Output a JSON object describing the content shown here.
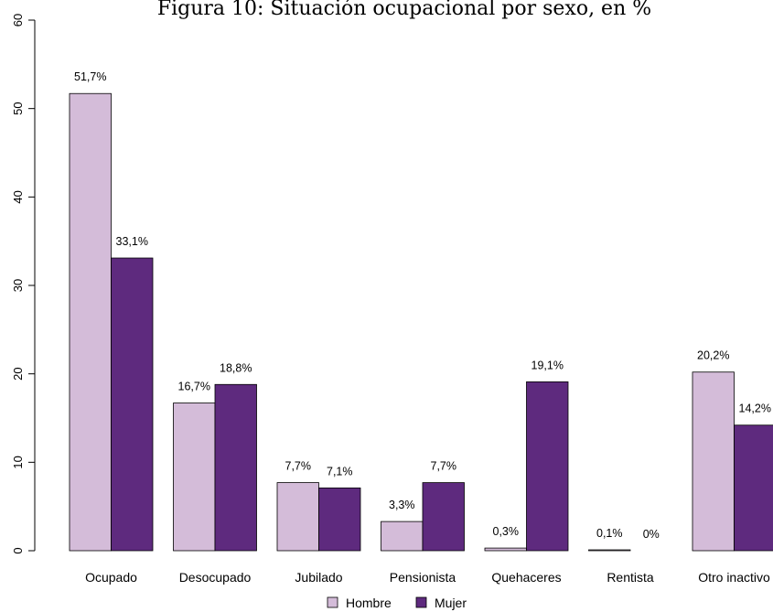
{
  "chart_data": {
    "type": "bar",
    "title": "Figura 10: Situación ocupacional por sexo, en %",
    "xlabel": "",
    "ylabel": "",
    "ylim": [
      0,
      60
    ],
    "yticks": [
      0,
      10,
      20,
      30,
      40,
      50,
      60
    ],
    "grid": false,
    "legend_position": "bottom",
    "categories": [
      "Ocupado",
      "Desocupado",
      "Jubilado",
      "Pensionista",
      "Quehaceres",
      "Rentista",
      "Otro inactivo"
    ],
    "series": [
      {
        "name": "Hombre",
        "color": "#d4bcd9",
        "values": [
          51.7,
          16.7,
          7.7,
          3.3,
          0.3,
          0.1,
          20.2
        ],
        "labels": [
          "51,7%",
          "16,7%",
          "7,7%",
          "3,3%",
          "0,3%",
          "0,1%",
          "20,2%"
        ]
      },
      {
        "name": "Mujer",
        "color": "#5e2a7e",
        "values": [
          33.1,
          18.8,
          7.1,
          7.7,
          19.1,
          0,
          14.2
        ],
        "labels": [
          "33,1%",
          "18,8%",
          "7,1%",
          "7,7%",
          "19,1%",
          "0%",
          "14,2%"
        ]
      }
    ]
  }
}
